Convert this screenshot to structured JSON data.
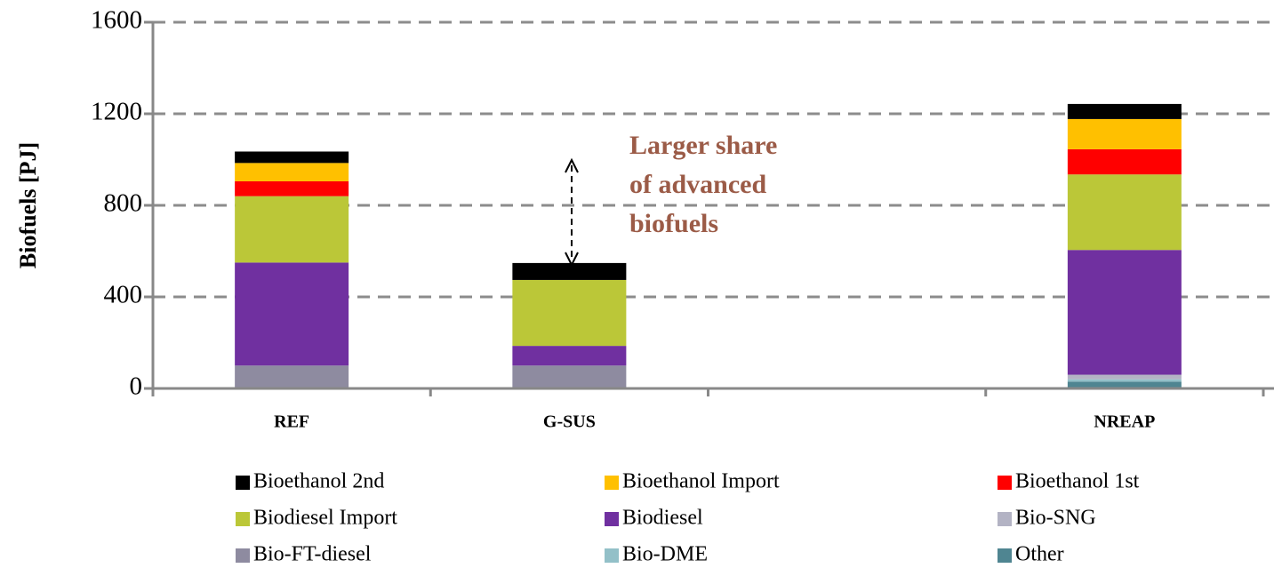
{
  "chart_data": {
    "type": "stacked_bar",
    "ylabel": "Biofuels [PJ]",
    "annotation": [
      "Larger  share",
      "of advanced",
      "biofuels"
    ],
    "categories": [
      "REF",
      "G-SUS",
      null,
      "NREAP"
    ],
    "ylim": [
      0,
      1600
    ],
    "yticks": [
      0,
      400,
      800,
      1200,
      1600
    ],
    "grid": true,
    "series": [
      {
        "name": "Bioethanol 2nd",
        "color": "#000000",
        "values": [
          50,
          74,
          null,
          66
        ]
      },
      {
        "name": "Bioethanol Import",
        "color": "#ffc000",
        "values": [
          80,
          0,
          null,
          132
        ]
      },
      {
        "name": "Bioethanol 1st",
        "color": "#ff0000",
        "values": [
          65,
          0,
          null,
          110
        ]
      },
      {
        "name": "Biodiesel Import",
        "color": "#bbc738",
        "values": [
          290,
          288,
          null,
          330
        ]
      },
      {
        "name": "Biodiesel",
        "color": "#7030a0",
        "values": [
          450,
          86,
          null,
          545
        ]
      },
      {
        "name": "Bio-SNG",
        "color": "#b3b3c4",
        "values": [
          0,
          0,
          null,
          20
        ]
      },
      {
        "name": "Bio-FT-diesel",
        "color": "#8e8ba0",
        "values": [
          100,
          100,
          null,
          0
        ]
      },
      {
        "name": "Bio-DME",
        "color": "#93c0c8",
        "values": [
          0,
          0,
          null,
          10
        ]
      },
      {
        "name": "Other",
        "color": "#4f8591",
        "values": [
          0,
          0,
          null,
          30
        ]
      }
    ]
  }
}
